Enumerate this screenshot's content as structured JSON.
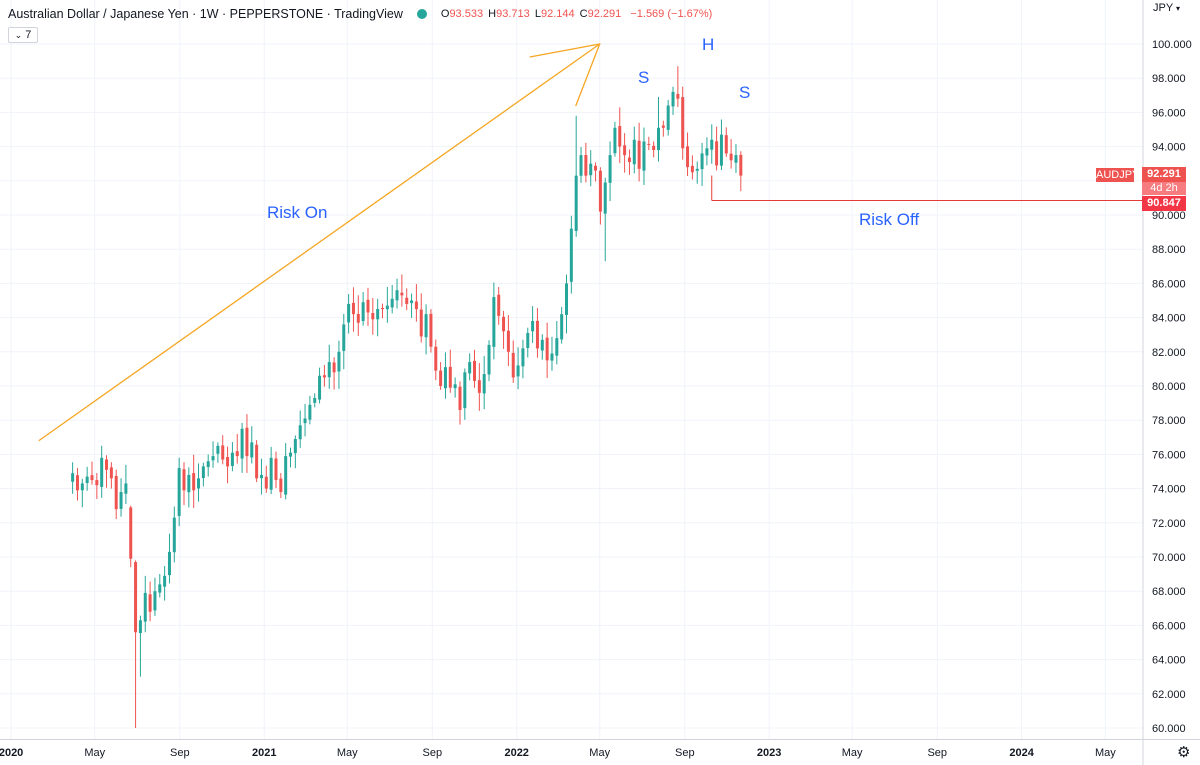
{
  "header": {
    "title": "Australian Dollar / Japanese Yen · 1W · PEPPERSTONE · TradingView",
    "o_label": "O",
    "o_value": "93.533",
    "h_label": "H",
    "h_value": "93.713",
    "l_label": "L",
    "l_value": "92.144",
    "c_label": "C",
    "c_value": "92.291",
    "change": "−1.569 (−1.67%)"
  },
  "indicators_toggle": {
    "count": "7",
    "icon": "chevron-down-icon"
  },
  "currency_label": "JPY",
  "price_tags": {
    "symbol": "AUDJPY",
    "last_price": "92.291",
    "countdown": "4d 2h",
    "level": "90.847"
  },
  "annotations": {
    "risk_on": "Risk On",
    "risk_off": "Risk Off",
    "left_shoulder": "S",
    "head": "H",
    "right_shoulder": "S"
  },
  "colors": {
    "up": "#26a69a",
    "down": "#ef5350",
    "trend_arrow": "#f5a623",
    "support_line": "#e53935",
    "annotation_text": "#2962ff",
    "grid": "#f0f3fa"
  },
  "chart_data": {
    "type": "candlestick",
    "symbol": "AUDJPY",
    "timeframe": "1W",
    "ylim": [
      59,
      101
    ],
    "yticks": [
      "100.000",
      "98.000",
      "96.000",
      "94.000",
      "92.000",
      "90.000",
      "88.000",
      "86.000",
      "84.000",
      "82.000",
      "80.000",
      "78.000",
      "76.000",
      "74.000",
      "72.000",
      "70.000",
      "68.000",
      "66.000",
      "64.000",
      "62.000",
      "60.000"
    ],
    "xticks": [
      "2020",
      "May",
      "Sep",
      "2021",
      "May",
      "Sep",
      "2022",
      "May",
      "Sep",
      "2023",
      "May",
      "Sep",
      "2024",
      "May"
    ],
    "x_range": [
      "2019-12-16",
      "2024-06-10"
    ],
    "last_bar_date": "2022-11-21",
    "closes": [
      74.9,
      73.9,
      74.3,
      74.7,
      74.5,
      74.2,
      75.8,
      75.1,
      74.6,
      72.8,
      73.8,
      74.3,
      69.9,
      65.6,
      66.3,
      67.9,
      66.8,
      68.0,
      68.4,
      68.9,
      70.3,
      72.3,
      75.2,
      73.9,
      74.8,
      73.9,
      74.6,
      75.3,
      75.6,
      75.9,
      76.5,
      75.7,
      75.3,
      76.1,
      75.9,
      77.5,
      75.9,
      76.7,
      74.6,
      74.8,
      74.0,
      75.8,
      74.5,
      73.8,
      75.9,
      76.1,
      76.9,
      77.7,
      78.1,
      78.9,
      79.3,
      80.6,
      80.5,
      81.4,
      80.8,
      82.0,
      83.6,
      84.8,
      84.2,
      83.7,
      84.9,
      84.3,
      83.9,
      84.5,
      84.5,
      84.7,
      85.1,
      85.6,
      85.3,
      84.8,
      85.0,
      84.5,
      82.9,
      84.2,
      82.3,
      80.9,
      80.0,
      81.1,
      79.9,
      80.1,
      78.6,
      80.8,
      81.4,
      80.3,
      79.6,
      80.7,
      82.4,
      85.2,
      84.1,
      83.2,
      82.0,
      80.5,
      81.2,
      82.2,
      83.1,
      83.8,
      82.2,
      82.7,
      81.5,
      81.9,
      82.8,
      84.2,
      86.0,
      89.2,
      92.3,
      93.5,
      92.3,
      93.0,
      92.6,
      90.2,
      91.9,
      93.5,
      95.1,
      94.0,
      93.5,
      93.1,
      94.4,
      92.7,
      94.3,
      94.1,
      93.8,
      95.1,
      95.1,
      96.4,
      97.2,
      96.8,
      93.9,
      92.8,
      92.5,
      92.7,
      93.6,
      93.9,
      94.4,
      92.9,
      94.7,
      93.6,
      93.2,
      93.5,
      92.3
    ],
    "labels": [
      {
        "text": "Risk On"
      },
      {
        "text": "Risk Off"
      },
      {
        "text": "S"
      },
      {
        "text": "H"
      },
      {
        "text": "S"
      }
    ],
    "horizontal_level": 90.847,
    "last_price": 92.291
  }
}
